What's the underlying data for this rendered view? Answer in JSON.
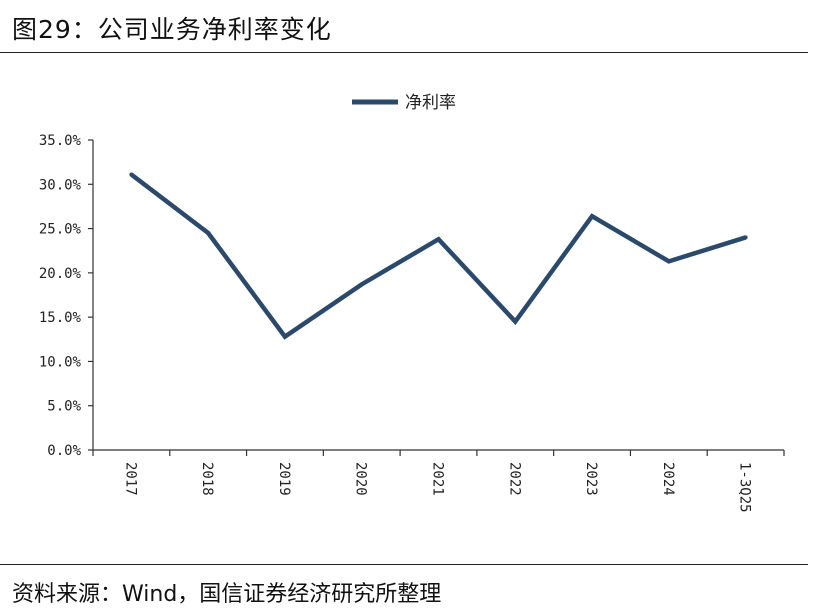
{
  "header": {
    "title": "图29：公司业务净利率变化"
  },
  "footer": {
    "source": "资料来源：Wind，国信证券经济研究所整理"
  },
  "colors": {
    "series": "#2b4a6b",
    "axis": "#333333"
  },
  "chart_data": {
    "type": "line",
    "categories": [
      "2017",
      "2018",
      "2019",
      "2020",
      "2021",
      "2022",
      "2023",
      "2024",
      "1-3Q25"
    ],
    "series": [
      {
        "name": "净利率",
        "values": [
          31.1,
          24.5,
          12.8,
          18.7,
          23.8,
          14.5,
          26.4,
          21.3,
          24.0
        ]
      }
    ],
    "yticks": [
      "0.0%",
      "5.0%",
      "10.0%",
      "15.0%",
      "20.0%",
      "25.0%",
      "30.0%",
      "35.0%"
    ],
    "ylim": [
      0,
      35
    ],
    "legend": "top-center",
    "grid": false
  }
}
